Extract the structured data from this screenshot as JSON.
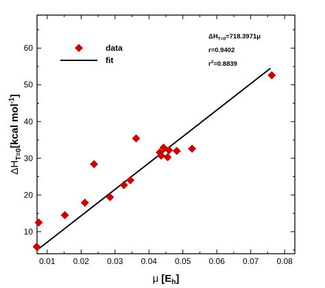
{
  "chart_data": {
    "type": "scatter",
    "title": "",
    "xlabel": {
      "symbol": "μ",
      "text": "[E",
      "sub": "h",
      "close": "]"
    },
    "ylabel": {
      "prefix": "ΔH",
      "sub": "T=0",
      "text": "[kcal mol",
      "sup": "-1",
      "close": "]"
    },
    "xlim": [
      0.007,
      0.083
    ],
    "ylim": [
      4,
      69
    ],
    "x_ticks": [
      0.01,
      0.02,
      0.03,
      0.04,
      0.05,
      0.06,
      0.07,
      0.08
    ],
    "x_tick_labels": [
      "0.01",
      "0.02",
      "0.03",
      "0.04",
      "0.05",
      "0.06",
      "0.07",
      "0.08"
    ],
    "y_ticks": [
      10,
      20,
      30,
      40,
      50,
      60
    ],
    "y_tick_labels": [
      "10",
      "20",
      "30",
      "40",
      "50",
      "60"
    ],
    "legend": {
      "placement": "top-left",
      "data_label": "data",
      "fit_label": "fit"
    },
    "series": [
      {
        "name": "data",
        "color": "#cc0000",
        "marker": "diamond",
        "points": [
          {
            "x": 0.0069,
            "y": 5.9
          },
          {
            "x": 0.0075,
            "y": 12.5
          },
          {
            "x": 0.0152,
            "y": 14.5
          },
          {
            "x": 0.0211,
            "y": 17.9
          },
          {
            "x": 0.0238,
            "y": 28.4
          },
          {
            "x": 0.0285,
            "y": 19.4
          },
          {
            "x": 0.0326,
            "y": 22.7
          },
          {
            "x": 0.0345,
            "y": 24.0
          },
          {
            "x": 0.0362,
            "y": 35.4
          },
          {
            "x": 0.0432,
            "y": 31.6
          },
          {
            "x": 0.0436,
            "y": 30.7
          },
          {
            "x": 0.0443,
            "y": 32.9
          },
          {
            "x": 0.0455,
            "y": 30.3
          },
          {
            "x": 0.0459,
            "y": 32.2
          },
          {
            "x": 0.0482,
            "y": 32.0
          },
          {
            "x": 0.0527,
            "y": 32.6
          },
          {
            "x": 0.0762,
            "y": 52.6
          }
        ]
      },
      {
        "name": "fit",
        "color": "#000000",
        "type": "line",
        "points": [
          {
            "x": 0.0076,
            "y": 5.4
          },
          {
            "x": 0.0758,
            "y": 54.5
          }
        ]
      }
    ],
    "annotations": [
      {
        "prefix": "ΔH",
        "sub": "T=0",
        "rest": "=718.3971μ"
      },
      {
        "text": "r=0.9402"
      },
      {
        "prefix": "r",
        "sup": "2",
        "rest": "=0.8839"
      }
    ]
  }
}
